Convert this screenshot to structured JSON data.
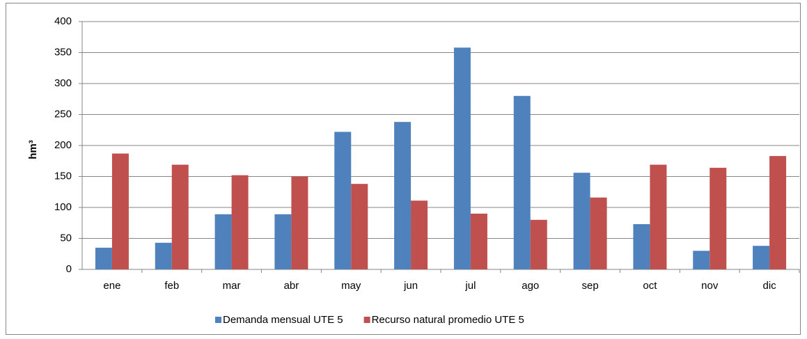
{
  "chart_data": {
    "type": "bar",
    "ylabel": "hm³",
    "categories": [
      "ene",
      "feb",
      "mar",
      "abr",
      "may",
      "jun",
      "jul",
      "ago",
      "sep",
      "oct",
      "nov",
      "dic"
    ],
    "series": [
      {
        "name": "Demanda mensual UTE 5",
        "color": "#4f81bd",
        "values": [
          35,
          43,
          89,
          89,
          222,
          238,
          358,
          280,
          156,
          73,
          30,
          38
        ]
      },
      {
        "name": "Recurso natural promedio UTE 5",
        "color": "#c0504d",
        "values": [
          187,
          169,
          152,
          150,
          138,
          111,
          90,
          80,
          116,
          169,
          164,
          183
        ]
      }
    ],
    "ylim": [
      0,
      400
    ],
    "yticks": [
      0,
      50,
      100,
      150,
      200,
      250,
      300,
      350,
      400
    ],
    "grid": true,
    "legend": "bottom"
  }
}
